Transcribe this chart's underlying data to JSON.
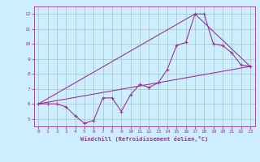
{
  "title": "",
  "xlabel": "Windchill (Refroidissement éolien,°C)",
  "bg_color": "#cceeff",
  "line_color": "#993399",
  "grid_color": "#aacccc",
  "xlim": [
    -0.5,
    23.5
  ],
  "ylim": [
    4.5,
    12.5
  ],
  "yticks": [
    5,
    6,
    7,
    8,
    9,
    10,
    11,
    12
  ],
  "xticks": [
    0,
    1,
    2,
    3,
    4,
    5,
    6,
    7,
    8,
    9,
    10,
    11,
    12,
    13,
    14,
    15,
    16,
    17,
    18,
    19,
    20,
    21,
    22,
    23
  ],
  "series1_x": [
    0,
    1,
    2,
    3,
    4,
    5,
    6,
    7,
    8,
    9,
    10,
    11,
    12,
    13,
    14,
    15,
    16,
    17,
    18,
    19,
    20,
    21,
    22,
    23
  ],
  "series1_y": [
    6.0,
    6.0,
    6.0,
    5.8,
    5.2,
    4.7,
    4.9,
    6.4,
    6.4,
    5.5,
    6.6,
    7.3,
    7.1,
    7.4,
    8.3,
    9.9,
    10.1,
    12.0,
    12.0,
    10.0,
    9.9,
    9.4,
    8.6,
    8.5
  ],
  "series2_x": [
    0,
    23
  ],
  "series2_y": [
    6.0,
    8.5
  ],
  "series3_x": [
    0,
    17,
    23
  ],
  "series3_y": [
    6.0,
    12.0,
    8.5
  ]
}
